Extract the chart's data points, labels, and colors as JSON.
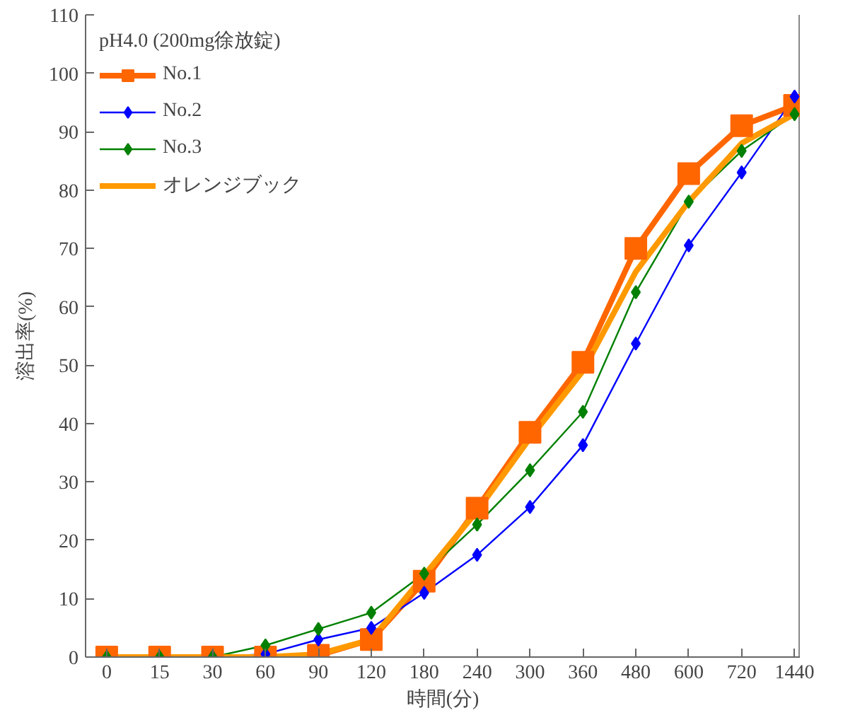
{
  "chart_data": {
    "type": "line",
    "xlabel": "時間(分)",
    "ylabel": "溶出率(%)",
    "legend_title": "pH4.0 (200mg徐放錠)",
    "categories": [
      "0",
      "15",
      "30",
      "60",
      "90",
      "120",
      "180",
      "240",
      "300",
      "360",
      "480",
      "600",
      "720",
      "1440"
    ],
    "ylim": [
      0,
      110
    ],
    "yticks": [
      0,
      10,
      20,
      30,
      40,
      50,
      60,
      70,
      80,
      90,
      100,
      110
    ],
    "grid": false,
    "legend": "top left",
    "series": [
      {
        "name": "No.1",
        "color": "#ff6600",
        "marker": "square",
        "values": [
          0,
          0,
          0,
          0,
          0.3,
          3,
          13,
          25.5,
          38.5,
          50.5,
          70,
          82.8,
          91,
          94.5
        ]
      },
      {
        "name": "No.2",
        "color": "#0000ff",
        "marker": "diamond",
        "values": [
          null,
          null,
          0,
          0.5,
          3,
          5,
          11,
          17.5,
          25.7,
          36.3,
          53.7,
          70.5,
          83,
          96
        ]
      },
      {
        "name": "No.3",
        "color": "#008000",
        "marker": "diamond",
        "values": [
          0,
          0,
          0,
          2,
          4.8,
          7.6,
          14.3,
          22.7,
          32,
          42,
          62.5,
          78,
          86.7,
          93
        ]
      },
      {
        "name": "オレンジブック",
        "color": "#ff9900",
        "marker": "none",
        "values": [
          0,
          0,
          0,
          0,
          0.5,
          3,
          14,
          25,
          37.5,
          49,
          66,
          78,
          88,
          93
        ]
      }
    ]
  }
}
